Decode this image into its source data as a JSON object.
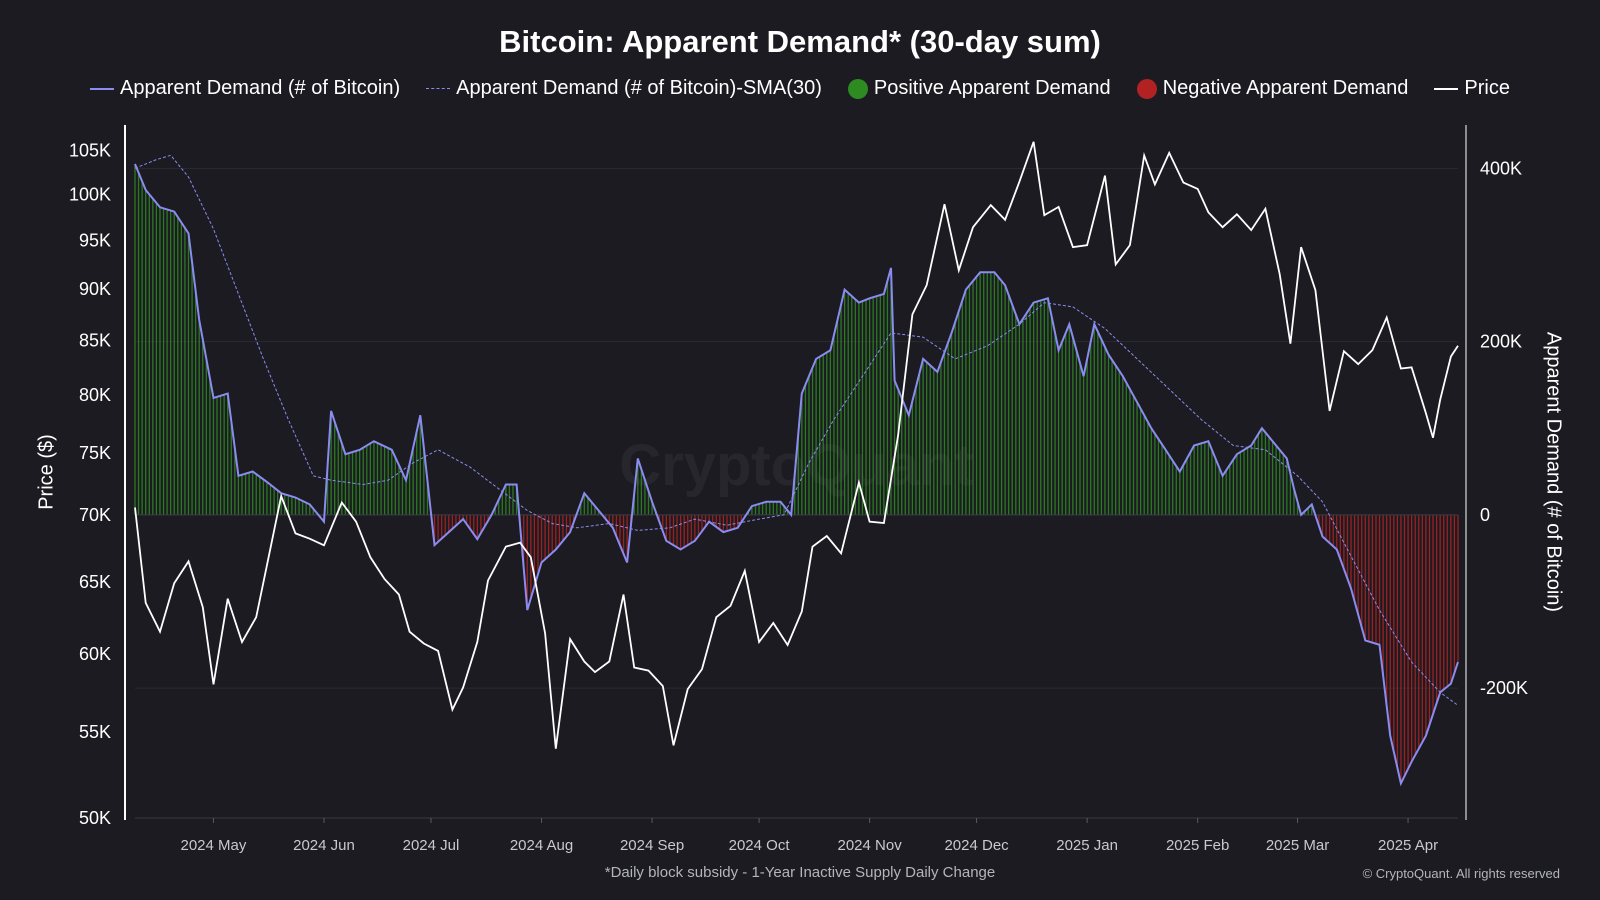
{
  "chart_data": {
    "type": "line",
    "title": "Bitcoin: Apparent Demand* (30-day sum)",
    "footnote": "*Daily block subsidy - 1-Year Inactive Supply Daily Change",
    "copyright": "© CryptoQuant. All rights reserved",
    "watermark": "CryptoQuant",
    "y_left_label": "Price ($)",
    "y_right_label": "Apparent Demand (# of Bitcoin)",
    "x_ticks": [
      "2024 May",
      "2024 Jun",
      "2024 Jul",
      "2024 Aug",
      "2024 Sep",
      "2024 Oct",
      "2024 Nov",
      "2024 Dec",
      "2025 Jan",
      "2025 Feb",
      "2025 Mar",
      "2025 Apr"
    ],
    "x_range": [
      "2024-04-09",
      "2025-04-15"
    ],
    "y_left_ticks": [
      "50K",
      "55K",
      "60K",
      "65K",
      "70K",
      "75K",
      "80K",
      "85K",
      "90K",
      "95K",
      "100K",
      "105K"
    ],
    "y_left_scale": "log",
    "y_left_range": [
      50000,
      108000
    ],
    "y_right_ticks": [
      "-200K",
      "0",
      "200K",
      "400K"
    ],
    "y_right_range": [
      -350000,
      450000
    ],
    "legend": [
      {
        "label": "Apparent Demand (# of Bitcoin)",
        "symbol": "line",
        "color": "#8a8cf0"
      },
      {
        "label": "Apparent Demand (# of Bitcoin)-SMA(30)",
        "symbol": "dashed-line",
        "color": "#8a8cf0"
      },
      {
        "label": "Positive Apparent Demand",
        "symbol": "dot",
        "color": "#2e8b22"
      },
      {
        "label": "Negative Apparent Demand",
        "symbol": "dot",
        "color": "#b22222"
      },
      {
        "label": "Price",
        "symbol": "line",
        "color": "#ffffff"
      }
    ],
    "colors": {
      "background": "#1b1b21",
      "demand": "#8a8cf0",
      "sma": "#8a8cf0",
      "positive": "#2e8b22",
      "negative": "#b22222",
      "price": "#ffffff",
      "grid": "#2a2a32"
    },
    "series": [
      {
        "name": "Apparent Demand (# of Bitcoin)",
        "axis": "right",
        "points": [
          [
            "2024-04-09",
            405000
          ],
          [
            "2024-04-12",
            375000
          ],
          [
            "2024-04-16",
            355000
          ],
          [
            "2024-04-20",
            350000
          ],
          [
            "2024-04-24",
            325000
          ],
          [
            "2024-04-27",
            225000
          ],
          [
            "2024-05-01",
            135000
          ],
          [
            "2024-05-05",
            140000
          ],
          [
            "2024-05-08",
            45000
          ],
          [
            "2024-05-12",
            50000
          ],
          [
            "2024-05-16",
            38000
          ],
          [
            "2024-05-20",
            25000
          ],
          [
            "2024-05-24",
            20000
          ],
          [
            "2024-05-28",
            12000
          ],
          [
            "2024-06-01",
            -8000
          ],
          [
            "2024-06-03",
            120000
          ],
          [
            "2024-06-07",
            70000
          ],
          [
            "2024-06-11",
            75000
          ],
          [
            "2024-06-15",
            85000
          ],
          [
            "2024-06-20",
            75000
          ],
          [
            "2024-06-24",
            40000
          ],
          [
            "2024-06-28",
            115000
          ],
          [
            "2024-07-02",
            -35000
          ],
          [
            "2024-07-06",
            -20000
          ],
          [
            "2024-07-10",
            -5000
          ],
          [
            "2024-07-14",
            -28000
          ],
          [
            "2024-07-18",
            0
          ],
          [
            "2024-07-22",
            35000
          ],
          [
            "2024-07-25",
            35000
          ],
          [
            "2024-07-28",
            -110000
          ],
          [
            "2024-08-01",
            -55000
          ],
          [
            "2024-08-05",
            -40000
          ],
          [
            "2024-08-09",
            -20000
          ],
          [
            "2024-08-13",
            25000
          ],
          [
            "2024-08-17",
            5000
          ],
          [
            "2024-08-21",
            -15000
          ],
          [
            "2024-08-25",
            -55000
          ],
          [
            "2024-08-28",
            65000
          ],
          [
            "2024-09-01",
            15000
          ],
          [
            "2024-09-05",
            -30000
          ],
          [
            "2024-09-09",
            -40000
          ],
          [
            "2024-09-13",
            -30000
          ],
          [
            "2024-09-17",
            -8000
          ],
          [
            "2024-09-21",
            -20000
          ],
          [
            "2024-09-25",
            -15000
          ],
          [
            "2024-09-29",
            10000
          ],
          [
            "2024-10-03",
            15000
          ],
          [
            "2024-10-07",
            15000
          ],
          [
            "2024-10-10",
            0
          ],
          [
            "2024-10-13",
            140000
          ],
          [
            "2024-10-17",
            180000
          ],
          [
            "2024-10-21",
            190000
          ],
          [
            "2024-10-25",
            260000
          ],
          [
            "2024-10-29",
            245000
          ],
          [
            "2024-11-01",
            250000
          ],
          [
            "2024-11-05",
            255000
          ],
          [
            "2024-11-07",
            285000
          ],
          [
            "2024-11-08",
            155000
          ],
          [
            "2024-11-12",
            115000
          ],
          [
            "2024-11-16",
            180000
          ],
          [
            "2024-11-20",
            165000
          ],
          [
            "2024-11-24",
            210000
          ],
          [
            "2024-11-28",
            260000
          ],
          [
            "2024-12-02",
            280000
          ],
          [
            "2024-12-06",
            280000
          ],
          [
            "2024-12-09",
            265000
          ],
          [
            "2024-12-13",
            220000
          ],
          [
            "2024-12-17",
            245000
          ],
          [
            "2024-12-21",
            250000
          ],
          [
            "2024-12-24",
            190000
          ],
          [
            "2024-12-27",
            220000
          ],
          [
            "2024-12-31",
            160000
          ],
          [
            "2025-01-03",
            220000
          ],
          [
            "2025-01-07",
            185000
          ],
          [
            "2025-01-11",
            160000
          ],
          [
            "2025-01-15",
            130000
          ],
          [
            "2025-01-19",
            100000
          ],
          [
            "2025-01-23",
            75000
          ],
          [
            "2025-01-27",
            50000
          ],
          [
            "2025-01-31",
            80000
          ],
          [
            "2025-02-04",
            85000
          ],
          [
            "2025-02-08",
            45000
          ],
          [
            "2025-02-12",
            70000
          ],
          [
            "2025-02-16",
            80000
          ],
          [
            "2025-02-19",
            100000
          ],
          [
            "2025-02-22",
            85000
          ],
          [
            "2025-02-26",
            65000
          ],
          [
            "2025-02-28",
            30000
          ],
          [
            "2025-03-02",
            0
          ],
          [
            "2025-03-05",
            12000
          ],
          [
            "2025-03-08",
            -25000
          ],
          [
            "2025-03-12",
            -40000
          ],
          [
            "2025-03-16",
            -85000
          ],
          [
            "2025-03-20",
            -145000
          ],
          [
            "2025-03-24",
            -150000
          ],
          [
            "2025-03-27",
            -255000
          ],
          [
            "2025-03-30",
            -310000
          ],
          [
            "2025-04-02",
            -285000
          ],
          [
            "2025-04-06",
            -255000
          ],
          [
            "2025-04-10",
            -205000
          ],
          [
            "2025-04-13",
            -195000
          ],
          [
            "2025-04-15",
            -170000
          ]
        ]
      },
      {
        "name": "Apparent Demand (# of Bitcoin)-SMA(30)",
        "axis": "right",
        "points": [
          [
            "2024-04-09",
            400000
          ],
          [
            "2024-04-15",
            410000
          ],
          [
            "2024-04-19",
            415000
          ],
          [
            "2024-04-24",
            390000
          ],
          [
            "2024-05-01",
            330000
          ],
          [
            "2024-05-08",
            255000
          ],
          [
            "2024-05-15",
            180000
          ],
          [
            "2024-05-22",
            110000
          ],
          [
            "2024-05-29",
            45000
          ],
          [
            "2024-06-03",
            40000
          ],
          [
            "2024-06-12",
            35000
          ],
          [
            "2024-06-19",
            40000
          ],
          [
            "2024-06-26",
            60000
          ],
          [
            "2024-07-03",
            75000
          ],
          [
            "2024-07-12",
            55000
          ],
          [
            "2024-07-20",
            30000
          ],
          [
            "2024-07-28",
            5000
          ],
          [
            "2024-08-04",
            -10000
          ],
          [
            "2024-08-11",
            -15000
          ],
          [
            "2024-08-20",
            -10000
          ],
          [
            "2024-08-28",
            -18000
          ],
          [
            "2024-09-06",
            -15000
          ],
          [
            "2024-09-13",
            -5000
          ],
          [
            "2024-09-22",
            -12000
          ],
          [
            "2024-10-01",
            -5000
          ],
          [
            "2024-10-08",
            0
          ],
          [
            "2024-10-15",
            60000
          ],
          [
            "2024-10-22",
            110000
          ],
          [
            "2024-10-30",
            160000
          ],
          [
            "2024-11-07",
            210000
          ],
          [
            "2024-11-16",
            205000
          ],
          [
            "2024-11-25",
            180000
          ],
          [
            "2024-12-04",
            195000
          ],
          [
            "2024-12-13",
            220000
          ],
          [
            "2024-12-20",
            245000
          ],
          [
            "2024-12-28",
            240000
          ],
          [
            "2025-01-06",
            215000
          ],
          [
            "2025-01-15",
            180000
          ],
          [
            "2025-01-24",
            145000
          ],
          [
            "2025-02-02",
            110000
          ],
          [
            "2025-02-11",
            80000
          ],
          [
            "2025-02-20",
            75000
          ],
          [
            "2025-03-01",
            45000
          ],
          [
            "2025-03-08",
            15000
          ],
          [
            "2025-03-15",
            -40000
          ],
          [
            "2025-03-24",
            -110000
          ],
          [
            "2025-04-02",
            -170000
          ],
          [
            "2025-04-10",
            -205000
          ],
          [
            "2025-04-15",
            -220000
          ]
        ]
      },
      {
        "name": "Price",
        "axis": "left",
        "points": [
          [
            "2024-04-09",
            70600
          ],
          [
            "2024-04-12",
            63500
          ],
          [
            "2024-04-16",
            61500
          ],
          [
            "2024-04-20",
            64900
          ],
          [
            "2024-04-24",
            66500
          ],
          [
            "2024-04-28",
            63200
          ],
          [
            "2024-05-01",
            58000
          ],
          [
            "2024-05-05",
            63800
          ],
          [
            "2024-05-09",
            60800
          ],
          [
            "2024-05-13",
            62500
          ],
          [
            "2024-05-16",
            66200
          ],
          [
            "2024-05-20",
            71500
          ],
          [
            "2024-05-24",
            68600
          ],
          [
            "2024-05-28",
            68200
          ],
          [
            "2024-06-01",
            67700
          ],
          [
            "2024-06-06",
            71000
          ],
          [
            "2024-06-10",
            69500
          ],
          [
            "2024-06-14",
            66800
          ],
          [
            "2024-06-18",
            65200
          ],
          [
            "2024-06-22",
            64100
          ],
          [
            "2024-06-25",
            61500
          ],
          [
            "2024-06-29",
            60700
          ],
          [
            "2024-07-03",
            60200
          ],
          [
            "2024-07-07",
            56400
          ],
          [
            "2024-07-10",
            57800
          ],
          [
            "2024-07-14",
            60800
          ],
          [
            "2024-07-17",
            65100
          ],
          [
            "2024-07-22",
            67600
          ],
          [
            "2024-07-26",
            67900
          ],
          [
            "2024-07-29",
            66800
          ],
          [
            "2024-08-02",
            61400
          ],
          [
            "2024-08-05",
            54000
          ],
          [
            "2024-08-09",
            61000
          ],
          [
            "2024-08-13",
            59500
          ],
          [
            "2024-08-16",
            58800
          ],
          [
            "2024-08-20",
            59500
          ],
          [
            "2024-08-24",
            64100
          ],
          [
            "2024-08-27",
            59100
          ],
          [
            "2024-08-31",
            58900
          ],
          [
            "2024-09-04",
            57900
          ],
          [
            "2024-09-07",
            54200
          ],
          [
            "2024-09-11",
            57700
          ],
          [
            "2024-09-15",
            59000
          ],
          [
            "2024-09-19",
            62500
          ],
          [
            "2024-09-23",
            63300
          ],
          [
            "2024-09-27",
            65800
          ],
          [
            "2024-10-01",
            60800
          ],
          [
            "2024-10-05",
            62100
          ],
          [
            "2024-10-09",
            60600
          ],
          [
            "2024-10-13",
            62900
          ],
          [
            "2024-10-16",
            67600
          ],
          [
            "2024-10-20",
            68400
          ],
          [
            "2024-10-24",
            67100
          ],
          [
            "2024-10-29",
            72600
          ],
          [
            "2024-11-01",
            69500
          ],
          [
            "2024-11-05",
            69400
          ],
          [
            "2024-11-09",
            76500
          ],
          [
            "2024-11-13",
            87500
          ],
          [
            "2024-11-17",
            90400
          ],
          [
            "2024-11-22",
            98900
          ],
          [
            "2024-11-26",
            91900
          ],
          [
            "2024-11-30",
            96400
          ],
          [
            "2024-12-05",
            98800
          ],
          [
            "2024-12-09",
            97200
          ],
          [
            "2024-12-13",
            101400
          ],
          [
            "2024-12-17",
            106000
          ],
          [
            "2024-12-20",
            97700
          ],
          [
            "2024-12-24",
            98600
          ],
          [
            "2024-12-28",
            94300
          ],
          [
            "2025-01-01",
            94500
          ],
          [
            "2025-01-06",
            102100
          ],
          [
            "2025-01-09",
            92500
          ],
          [
            "2025-01-13",
            94500
          ],
          [
            "2025-01-17",
            104400
          ],
          [
            "2025-01-20",
            101100
          ],
          [
            "2025-01-24",
            104700
          ],
          [
            "2025-01-28",
            101300
          ],
          [
            "2025-02-01",
            100600
          ],
          [
            "2025-02-04",
            98000
          ],
          [
            "2025-02-08",
            96400
          ],
          [
            "2025-02-12",
            97800
          ],
          [
            "2025-02-16",
            96100
          ],
          [
            "2025-02-20",
            98400
          ],
          [
            "2025-02-24",
            91500
          ],
          [
            "2025-02-27",
            84700
          ],
          [
            "2025-03-02",
            94300
          ],
          [
            "2025-03-06",
            89900
          ],
          [
            "2025-03-10",
            78600
          ],
          [
            "2025-03-14",
            84000
          ],
          [
            "2025-03-18",
            82800
          ],
          [
            "2025-03-22",
            84100
          ],
          [
            "2025-03-26",
            87200
          ],
          [
            "2025-03-30",
            82400
          ],
          [
            "2025-04-02",
            82500
          ],
          [
            "2025-04-06",
            78400
          ],
          [
            "2025-04-08",
            76300
          ],
          [
            "2025-04-10",
            79600
          ],
          [
            "2025-04-13",
            83500
          ],
          [
            "2025-04-15",
            84500
          ]
        ]
      }
    ]
  }
}
